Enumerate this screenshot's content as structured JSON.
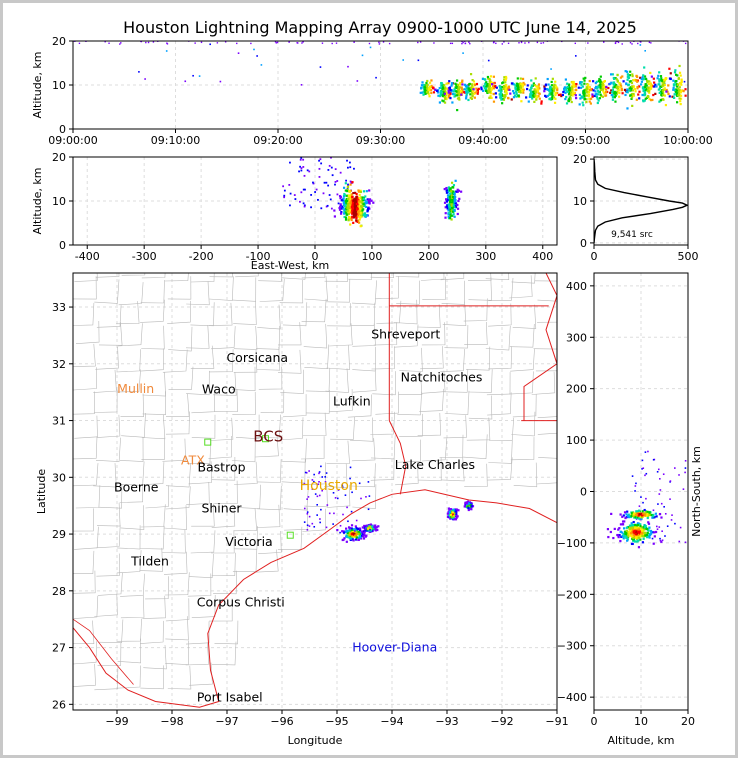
{
  "title": "Houston Lightning Mapping Array 0900-1000 UTC June 14, 2025",
  "colors": {
    "state_border": "#e02020",
    "county_border": "#b8b8b8",
    "grid": "#dddddd",
    "label_default": "#000000",
    "label_orange": "#f08a3c",
    "label_gold": "#e8a800",
    "label_blue": "#1010dd",
    "label_dark": "#6b1010",
    "station_marker": "#55dd22"
  },
  "chart_data": [
    {
      "id": "time-height",
      "type": "scatter",
      "xlabel": "",
      "ylabel": "Altitude, km",
      "x_ticks": [
        "09:00:00",
        "09:10:00",
        "09:20:00",
        "09:30:00",
        "09:40:00",
        "09:50:00",
        "10:00:00"
      ],
      "y_ticks": [
        0,
        10,
        20
      ],
      "ylim": [
        0,
        20
      ],
      "xlim_minutes": [
        0,
        60
      ],
      "clusters": [
        {
          "t": 34.5,
          "alt": 9,
          "spread": 1.5
        },
        {
          "t": 36.2,
          "alt": 8.5,
          "spread": 2
        },
        {
          "t": 37.5,
          "alt": 9,
          "spread": 2
        },
        {
          "t": 38.8,
          "alt": 9,
          "spread": 2
        },
        {
          "t": 40.5,
          "alt": 9.5,
          "spread": 2.5
        },
        {
          "t": 42.0,
          "alt": 9,
          "spread": 2.5
        },
        {
          "t": 43.5,
          "alt": 9,
          "spread": 2
        },
        {
          "t": 45.0,
          "alt": 8.5,
          "spread": 2
        },
        {
          "t": 46.8,
          "alt": 8.5,
          "spread": 2
        },
        {
          "t": 48.5,
          "alt": 8.5,
          "spread": 2
        },
        {
          "t": 50.0,
          "alt": 8.5,
          "spread": 2.5
        },
        {
          "t": 51.5,
          "alt": 9,
          "spread": 2.5
        },
        {
          "t": 53.0,
          "alt": 9.5,
          "spread": 3
        },
        {
          "t": 54.5,
          "alt": 9.5,
          "spread": 3
        },
        {
          "t": 56.0,
          "alt": 9.5,
          "spread": 3
        },
        {
          "t": 57.5,
          "alt": 9.5,
          "spread": 3
        },
        {
          "t": 59.0,
          "alt": 9.5,
          "spread": 3
        }
      ]
    },
    {
      "id": "ew-height",
      "type": "scatter",
      "xlabel": "East-West, km",
      "ylabel": "Altitude, km",
      "x_ticks": [
        -400,
        -300,
        -200,
        -100,
        0,
        100,
        200,
        300,
        400
      ],
      "y_ticks": [
        0,
        10,
        20
      ],
      "xlim": [
        -425,
        425
      ],
      "ylim": [
        0,
        20
      ],
      "clusters": [
        {
          "x": 70,
          "alt": 9,
          "wx": 12,
          "spread": 3
        },
        {
          "x": 240,
          "alt": 10,
          "wx": 5,
          "spread": 3
        }
      ]
    },
    {
      "id": "altitude-histogram",
      "type": "line",
      "xlabel": "",
      "ylabel": "",
      "x_ticks": [
        0,
        500
      ],
      "y_ticks": [
        0,
        10,
        20
      ],
      "xlim": [
        0,
        500
      ],
      "ylim": [
        -0.5,
        20.5
      ],
      "annotation": "9,541 src",
      "x": [
        0,
        2,
        5,
        8,
        20,
        60,
        150,
        300,
        420,
        470,
        495,
        470,
        400,
        280,
        160,
        60,
        20,
        8,
        4,
        2,
        0
      ],
      "alt": [
        0,
        1,
        2,
        3,
        4,
        5,
        6,
        7,
        8,
        8.5,
        9,
        9.5,
        10,
        11,
        12,
        13,
        14,
        15,
        17,
        19,
        20
      ]
    },
    {
      "id": "plan-view-map",
      "type": "scatter",
      "xlabel": "Longitude",
      "ylabel": "Latitude",
      "x_ticks": [
        -99,
        -98,
        -97,
        -96,
        -95,
        -94,
        -93,
        -92,
        -91
      ],
      "y_ticks": [
        26,
        27,
        28,
        29,
        30,
        31,
        32,
        33
      ],
      "xlim": [
        -99.8,
        -91
      ],
      "ylim": [
        25.9,
        33.6
      ],
      "clusters": [
        {
          "lon": -94.7,
          "lat": 29.0,
          "wlon": 0.2,
          "wlat": 0.12
        },
        {
          "lon": -94.4,
          "lat": 29.1,
          "wlon": 0.1,
          "wlat": 0.06
        },
        {
          "lon": -92.9,
          "lat": 29.35,
          "wlon": 0.08,
          "wlat": 0.1
        },
        {
          "lon": -92.6,
          "lat": 29.5,
          "wlon": 0.06,
          "wlat": 0.05
        }
      ],
      "stations": [
        {
          "lon": -97.35,
          "lat": 30.62
        },
        {
          "lon": -96.3,
          "lat": 30.68
        },
        {
          "lon": -95.85,
          "lat": 28.98
        }
      ]
    },
    {
      "id": "ns-height",
      "type": "scatter",
      "xlabel": "Altitude, km",
      "ylabel": "North-South, km",
      "x_ticks": [
        0,
        10,
        20
      ],
      "y_ticks": [
        -400,
        -300,
        -200,
        -100,
        0,
        100,
        200,
        300,
        400
      ],
      "xlim": [
        0,
        20
      ],
      "ylim": [
        -425,
        425
      ],
      "clusters": [
        {
          "alt": 9,
          "y": -80,
          "wa": 3,
          "wy": 18
        },
        {
          "alt": 10,
          "y": -45,
          "wa": 3,
          "wy": 8
        }
      ]
    }
  ],
  "cities": [
    {
      "name": "Shreveport",
      "lon": -93.75,
      "lat": 32.52,
      "color": "#000000"
    },
    {
      "name": "Corsicana",
      "lon": -96.45,
      "lat": 32.1,
      "color": "#000000"
    },
    {
      "name": "Natchitoches",
      "lon": -93.1,
      "lat": 31.76,
      "color": "#000000"
    },
    {
      "name": "Mullin",
      "lon": -98.66,
      "lat": 31.56,
      "color": "#f08a3c"
    },
    {
      "name": "Waco",
      "lon": -97.15,
      "lat": 31.55,
      "color": "#000000"
    },
    {
      "name": "Lufkin",
      "lon": -94.73,
      "lat": 31.34,
      "color": "#000000"
    },
    {
      "name": "BCS",
      "lon": -96.25,
      "lat": 30.7,
      "color": "#6b1010"
    },
    {
      "name": "ATX",
      "lon": -97.62,
      "lat": 30.3,
      "color": "#f08a3c"
    },
    {
      "name": "Lake Charles",
      "lon": -93.22,
      "lat": 30.22,
      "color": "#000000"
    },
    {
      "name": "Bastrop",
      "lon": -97.1,
      "lat": 30.17,
      "color": "#000000"
    },
    {
      "name": "Houston",
      "lon": -95.15,
      "lat": 29.85,
      "color": "#e8a800"
    },
    {
      "name": "Boerne",
      "lon": -98.65,
      "lat": 29.82,
      "color": "#000000"
    },
    {
      "name": "Shiner",
      "lon": -97.1,
      "lat": 29.45,
      "color": "#000000"
    },
    {
      "name": "Victoria",
      "lon": -96.6,
      "lat": 28.86,
      "color": "#000000"
    },
    {
      "name": "Tilden",
      "lon": -98.4,
      "lat": 28.52,
      "color": "#000000"
    },
    {
      "name": "Corpus Christi",
      "lon": -96.75,
      "lat": 27.79,
      "color": "#000000"
    },
    {
      "name": "Hoover-Diana",
      "lon": -93.95,
      "lat": 27.0,
      "color": "#1010dd"
    },
    {
      "name": "Port Isabel",
      "lon": -96.95,
      "lat": 26.12,
      "color": "#000000"
    }
  ]
}
